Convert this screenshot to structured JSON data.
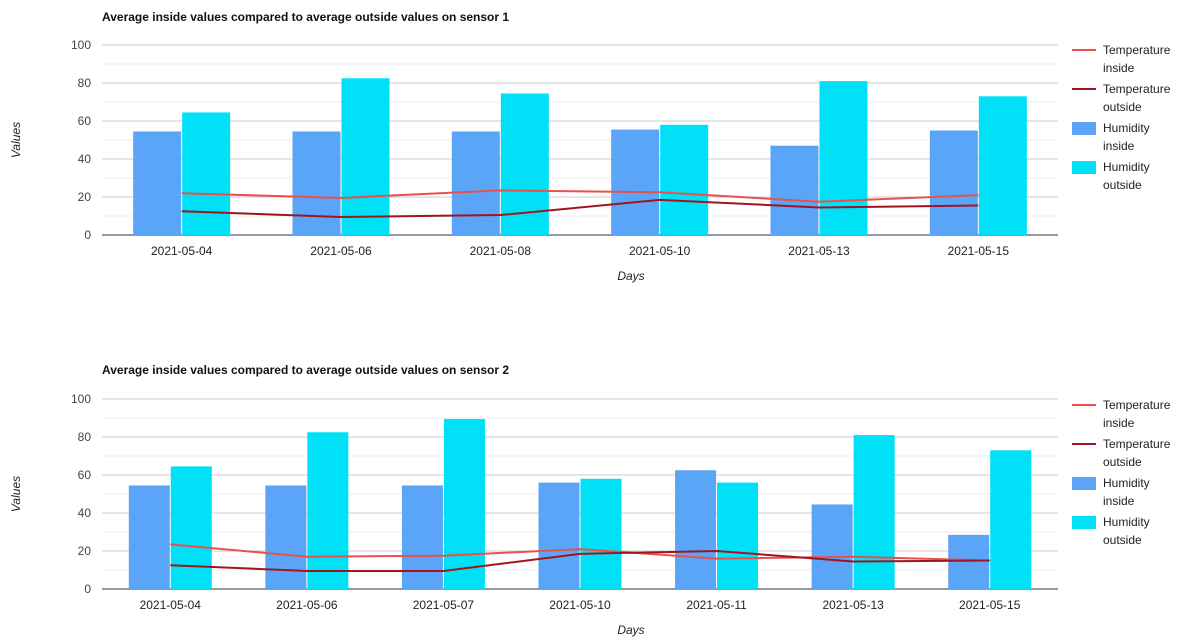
{
  "chart_data": [
    {
      "type": "bar",
      "title": "Average inside values compared to average outside values on sensor 1",
      "xlabel": "Days",
      "ylabel": "Values",
      "ylim": [
        0,
        100
      ],
      "yticks": [
        0,
        20,
        40,
        60,
        80,
        100
      ],
      "grid": true,
      "legend_position": "right",
      "categories": [
        "2021-05-04",
        "2021-05-06",
        "2021-05-08",
        "2021-05-10",
        "2021-05-13",
        "2021-05-15"
      ],
      "series": [
        {
          "name": "Temperature inside",
          "type": "line",
          "color": "#e8524a",
          "values": [
            22,
            19.5,
            23.5,
            22.5,
            17.5,
            21
          ]
        },
        {
          "name": "Temperature outside",
          "type": "line",
          "color": "#a3131f",
          "values": [
            12.5,
            9.5,
            10.5,
            18.5,
            14.5,
            15.5
          ]
        },
        {
          "name": "Humidity inside",
          "type": "bar",
          "color": "#5aa5f7",
          "values": [
            54.5,
            54.5,
            54.5,
            55.5,
            47,
            55
          ]
        },
        {
          "name": "Humidity outside",
          "type": "bar",
          "color": "#00e1f7",
          "values": [
            64.5,
            82.5,
            74.5,
            58,
            81,
            73
          ]
        }
      ]
    },
    {
      "type": "bar",
      "title": "Average inside values compared to average outside values on sensor 2",
      "xlabel": "Days",
      "ylabel": "Values",
      "ylim": [
        0,
        100
      ],
      "yticks": [
        0,
        20,
        40,
        60,
        80,
        100
      ],
      "grid": true,
      "legend_position": "right",
      "categories": [
        "2021-05-04",
        "2021-05-06",
        "2021-05-07",
        "2021-05-10",
        "2021-05-11",
        "2021-05-13",
        "2021-05-15"
      ],
      "series": [
        {
          "name": "Temperature inside",
          "type": "line",
          "color": "#e8524a",
          "values": [
            23.5,
            17,
            17.5,
            21,
            16,
            17,
            15
          ]
        },
        {
          "name": "Temperature outside",
          "type": "line",
          "color": "#a3131f",
          "values": [
            12.5,
            9.5,
            9.5,
            18.5,
            20,
            14.5,
            15
          ]
        },
        {
          "name": "Humidity inside",
          "type": "bar",
          "color": "#5aa5f7",
          "values": [
            54.5,
            54.5,
            54.5,
            56,
            62.5,
            44.5,
            28.5
          ]
        },
        {
          "name": "Humidity outside",
          "type": "bar",
          "color": "#00e1f7",
          "values": [
            64.5,
            82.5,
            89.5,
            58,
            56,
            81,
            73
          ]
        }
      ]
    }
  ]
}
